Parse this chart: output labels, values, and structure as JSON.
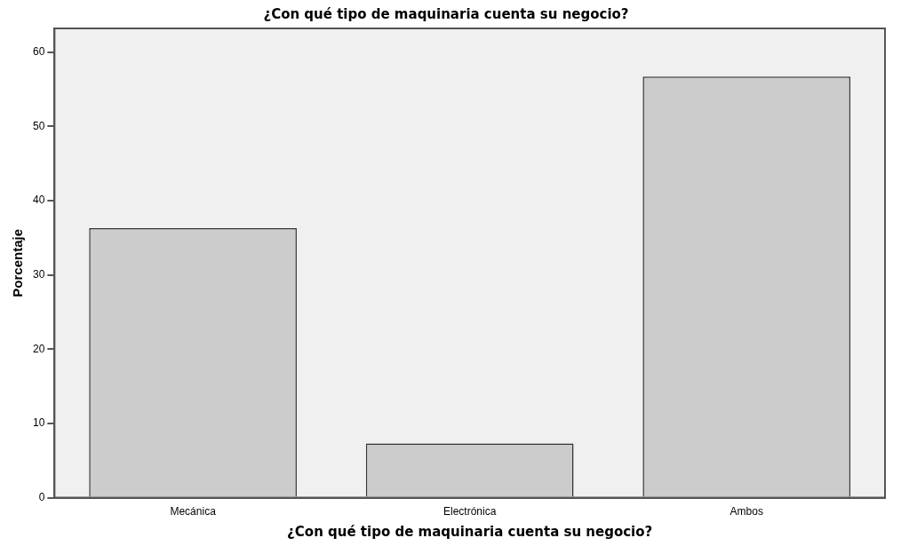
{
  "chart_data": {
    "type": "bar",
    "title": "¿Con qué tipo de maquinaria cuenta su negocio?",
    "xlabel": "¿Con qué tipo de maquinaria cuenta su negocio?",
    "ylabel": "Porcentaje",
    "categories": [
      "Mecánica",
      "Electrónica",
      "Ambos"
    ],
    "values": [
      36.3,
      7.3,
      56.7
    ],
    "color": "#cccccc",
    "ylim": [
      0,
      63.2
    ],
    "yticks": [
      0,
      10,
      20,
      30,
      40,
      50,
      60
    ],
    "grid": false,
    "legend": false
  }
}
